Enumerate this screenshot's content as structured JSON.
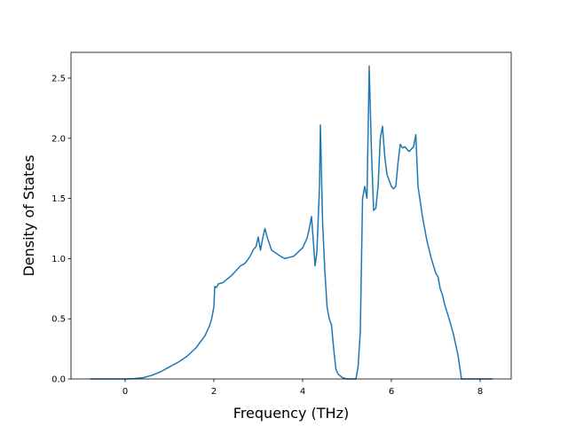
{
  "chart_data": {
    "type": "line",
    "xlabel": "Frequency (THz)",
    "ylabel": "Density of States",
    "x": [
      -0.78,
      0,
      0.2,
      0.4,
      0.6,
      0.8,
      1.0,
      1.2,
      1.4,
      1.6,
      1.8,
      1.9,
      1.95,
      2.0,
      2.02,
      2.06,
      2.1,
      2.2,
      2.4,
      2.6,
      2.7,
      2.8,
      2.9,
      2.95,
      3.0,
      3.05,
      3.1,
      3.15,
      3.2,
      3.3,
      3.5,
      3.6,
      3.8,
      4.0,
      4.1,
      4.15,
      4.2,
      4.25,
      4.28,
      4.32,
      4.38,
      4.4,
      4.45,
      4.5,
      4.55,
      4.6,
      4.65,
      4.7,
      4.75,
      4.8,
      4.9,
      5.0,
      5.2,
      5.25,
      5.3,
      5.35,
      5.4,
      5.45,
      5.5,
      5.55,
      5.6,
      5.65,
      5.7,
      5.75,
      5.8,
      5.85,
      5.9,
      6.0,
      6.05,
      6.1,
      6.15,
      6.2,
      6.25,
      6.3,
      6.4,
      6.5,
      6.55,
      6.6,
      6.7,
      6.8,
      6.9,
      7.0,
      7.05,
      7.1,
      7.15,
      7.2,
      7.3,
      7.4,
      7.5,
      7.58,
      8.28
    ],
    "series": [
      {
        "color": "#1f77b4",
        "values": [
          0,
          0,
          0.003,
          0.01,
          0.03,
          0.06,
          0.1,
          0.14,
          0.19,
          0.26,
          0.36,
          0.44,
          0.5,
          0.6,
          0.77,
          0.76,
          0.79,
          0.8,
          0.86,
          0.94,
          0.96,
          1.01,
          1.08,
          1.1,
          1.18,
          1.07,
          1.17,
          1.25,
          1.18,
          1.07,
          1.02,
          1.0,
          1.02,
          1.09,
          1.17,
          1.25,
          1.35,
          1.1,
          0.94,
          1.05,
          1.6,
          2.11,
          1.3,
          0.9,
          0.6,
          0.5,
          0.45,
          0.25,
          0.08,
          0.04,
          0.01,
          0,
          0,
          0.1,
          0.4,
          1.5,
          1.6,
          1.5,
          2.6,
          1.9,
          1.4,
          1.42,
          1.6,
          2.0,
          2.1,
          1.85,
          1.7,
          1.6,
          1.58,
          1.6,
          1.8,
          1.95,
          1.92,
          1.93,
          1.89,
          1.93,
          2.03,
          1.6,
          1.35,
          1.15,
          1.0,
          0.88,
          0.85,
          0.75,
          0.7,
          0.62,
          0.5,
          0.37,
          0.2,
          0,
          0
        ]
      }
    ],
    "xlim": [
      -1.22,
      8.7
    ],
    "ylim": [
      0,
      2.714
    ],
    "xticks": [
      0,
      2,
      4,
      6,
      8
    ],
    "yticks": [
      {
        "value": 0,
        "label": "0.0"
      },
      0.5,
      {
        "value": 1,
        "label": "1.0"
      },
      1.5,
      {
        "value": 2,
        "label": "2.0"
      },
      2.5
    ]
  }
}
